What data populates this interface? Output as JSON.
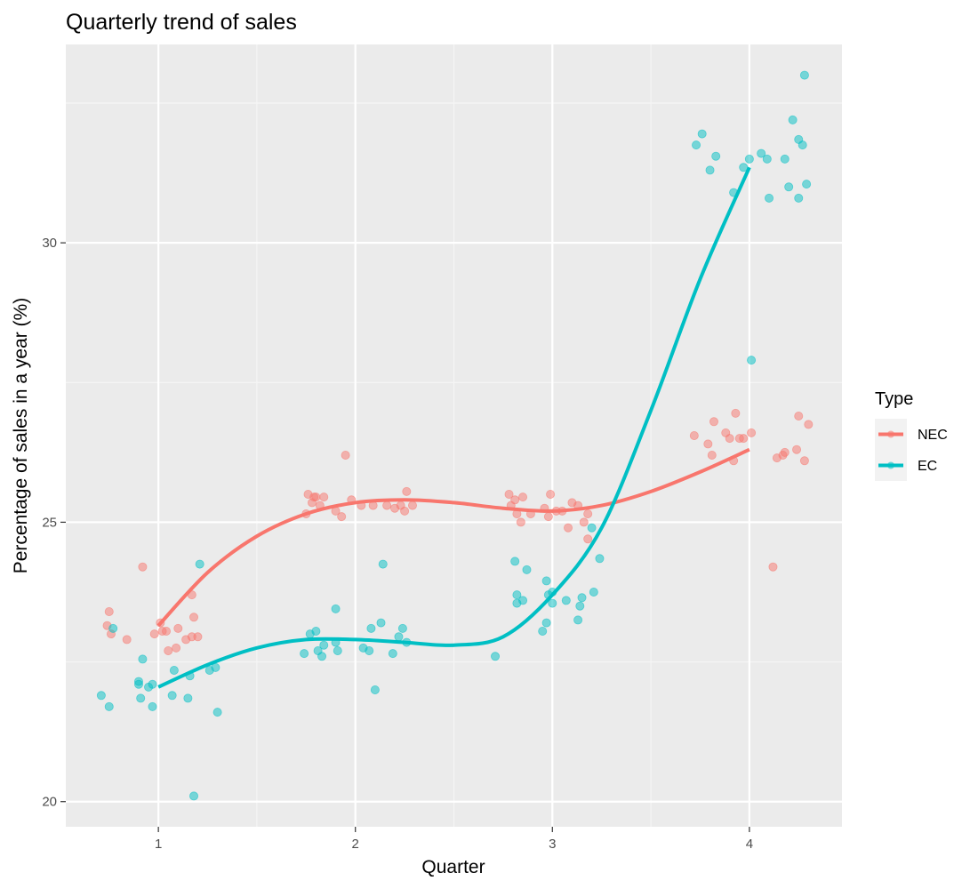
{
  "chart_data": {
    "type": "scatter",
    "title": "Quarterly trend of sales",
    "xlabel": "Quarter",
    "ylabel": "Percentage of sales in a year (%)",
    "xlim": [
      0.53,
      4.47
    ],
    "ylim": [
      19.55,
      33.55
    ],
    "x_ticks": [
      1,
      2,
      3,
      4
    ],
    "y_ticks": [
      20,
      25,
      30
    ],
    "grid": true,
    "legend": {
      "title": "Type",
      "position": "right"
    },
    "series": [
      {
        "name": "NEC",
        "color": "#F8766D",
        "points": [
          [
            0.75,
            23.4
          ],
          [
            0.74,
            23.15
          ],
          [
            0.76,
            23.0
          ],
          [
            0.84,
            22.9
          ],
          [
            0.92,
            24.2
          ],
          [
            0.98,
            23.0
          ],
          [
            1.01,
            23.2
          ],
          [
            1.02,
            23.05
          ],
          [
            1.04,
            23.05
          ],
          [
            1.05,
            22.7
          ],
          [
            1.09,
            22.75
          ],
          [
            1.1,
            23.1
          ],
          [
            1.14,
            22.9
          ],
          [
            1.17,
            23.7
          ],
          [
            1.17,
            22.95
          ],
          [
            1.18,
            23.3
          ],
          [
            1.2,
            22.95
          ],
          [
            1.75,
            25.15
          ],
          [
            1.76,
            25.5
          ],
          [
            1.78,
            25.35
          ],
          [
            1.79,
            25.45
          ],
          [
            1.8,
            25.45
          ],
          [
            1.82,
            25.3
          ],
          [
            1.84,
            25.45
          ],
          [
            1.9,
            25.2
          ],
          [
            1.93,
            25.1
          ],
          [
            1.95,
            26.2
          ],
          [
            1.98,
            25.4
          ],
          [
            2.03,
            25.3
          ],
          [
            2.09,
            25.3
          ],
          [
            2.16,
            25.3
          ],
          [
            2.2,
            25.25
          ],
          [
            2.23,
            25.3
          ],
          [
            2.25,
            25.2
          ],
          [
            2.26,
            25.55
          ],
          [
            2.29,
            25.3
          ],
          [
            2.78,
            25.5
          ],
          [
            2.79,
            25.3
          ],
          [
            2.81,
            25.4
          ],
          [
            2.82,
            25.15
          ],
          [
            2.84,
            25.0
          ],
          [
            2.85,
            25.45
          ],
          [
            2.89,
            25.15
          ],
          [
            2.96,
            25.25
          ],
          [
            2.98,
            25.1
          ],
          [
            2.99,
            25.5
          ],
          [
            3.02,
            25.2
          ],
          [
            3.05,
            25.2
          ],
          [
            3.08,
            24.9
          ],
          [
            3.1,
            25.35
          ],
          [
            3.13,
            25.3
          ],
          [
            3.16,
            25.0
          ],
          [
            3.18,
            25.15
          ],
          [
            3.18,
            24.7
          ],
          [
            3.72,
            26.55
          ],
          [
            3.79,
            26.4
          ],
          [
            3.81,
            26.2
          ],
          [
            3.82,
            26.8
          ],
          [
            3.88,
            26.6
          ],
          [
            3.9,
            26.5
          ],
          [
            3.92,
            26.1
          ],
          [
            3.93,
            26.95
          ],
          [
            3.95,
            26.5
          ],
          [
            3.97,
            26.5
          ],
          [
            4.01,
            26.6
          ],
          [
            4.12,
            24.2
          ],
          [
            4.14,
            26.15
          ],
          [
            4.17,
            26.2
          ],
          [
            4.18,
            26.25
          ],
          [
            4.24,
            26.3
          ],
          [
            4.25,
            26.9
          ],
          [
            4.28,
            26.1
          ],
          [
            4.3,
            26.75
          ]
        ],
        "trend": [
          [
            1.0,
            23.15
          ],
          [
            1.25,
            24.1
          ],
          [
            1.5,
            24.75
          ],
          [
            1.75,
            25.15
          ],
          [
            2.0,
            25.35
          ],
          [
            2.25,
            25.4
          ],
          [
            2.5,
            25.35
          ],
          [
            2.75,
            25.25
          ],
          [
            3.0,
            25.2
          ],
          [
            3.25,
            25.3
          ],
          [
            3.5,
            25.55
          ],
          [
            3.75,
            25.9
          ],
          [
            4.0,
            26.3
          ]
        ]
      },
      {
        "name": "EC",
        "color": "#00BFC4",
        "points": [
          [
            0.71,
            21.9
          ],
          [
            0.75,
            21.7
          ],
          [
            0.77,
            23.1
          ],
          [
            0.9,
            22.15
          ],
          [
            0.9,
            22.1
          ],
          [
            0.91,
            21.85
          ],
          [
            0.92,
            22.55
          ],
          [
            0.95,
            22.05
          ],
          [
            0.97,
            22.1
          ],
          [
            0.97,
            21.7
          ],
          [
            1.07,
            21.9
          ],
          [
            1.08,
            22.35
          ],
          [
            1.15,
            21.85
          ],
          [
            1.16,
            22.25
          ],
          [
            1.18,
            20.1
          ],
          [
            1.21,
            24.25
          ],
          [
            1.26,
            22.35
          ],
          [
            1.29,
            22.4
          ],
          [
            1.3,
            21.6
          ],
          [
            1.74,
            22.65
          ],
          [
            1.77,
            23.0
          ],
          [
            1.8,
            23.05
          ],
          [
            1.81,
            22.7
          ],
          [
            1.83,
            22.6
          ],
          [
            1.84,
            22.8
          ],
          [
            1.9,
            22.85
          ],
          [
            1.9,
            23.45
          ],
          [
            1.91,
            22.7
          ],
          [
            2.04,
            22.75
          ],
          [
            2.07,
            22.7
          ],
          [
            2.08,
            23.1
          ],
          [
            2.1,
            22.0
          ],
          [
            2.13,
            23.2
          ],
          [
            2.14,
            24.25
          ],
          [
            2.19,
            22.65
          ],
          [
            2.22,
            22.95
          ],
          [
            2.24,
            23.1
          ],
          [
            2.26,
            22.85
          ],
          [
            2.71,
            22.6
          ],
          [
            2.81,
            24.3
          ],
          [
            2.82,
            23.7
          ],
          [
            2.82,
            23.55
          ],
          [
            2.85,
            23.6
          ],
          [
            2.87,
            24.15
          ],
          [
            2.95,
            23.05
          ],
          [
            2.97,
            23.2
          ],
          [
            2.97,
            23.95
          ],
          [
            2.98,
            23.7
          ],
          [
            3.0,
            23.55
          ],
          [
            3.0,
            23.75
          ],
          [
            3.07,
            23.6
          ],
          [
            3.13,
            23.25
          ],
          [
            3.14,
            23.5
          ],
          [
            3.15,
            23.65
          ],
          [
            3.2,
            24.9
          ],
          [
            3.21,
            23.75
          ],
          [
            3.24,
            24.35
          ],
          [
            3.73,
            31.75
          ],
          [
            3.76,
            31.95
          ],
          [
            3.8,
            31.3
          ],
          [
            3.83,
            31.55
          ],
          [
            3.92,
            30.9
          ],
          [
            3.97,
            31.35
          ],
          [
            4.0,
            31.5
          ],
          [
            4.01,
            27.9
          ],
          [
            4.06,
            31.6
          ],
          [
            4.09,
            31.5
          ],
          [
            4.1,
            30.8
          ],
          [
            4.18,
            31.5
          ],
          [
            4.2,
            31.0
          ],
          [
            4.22,
            32.2
          ],
          [
            4.25,
            30.8
          ],
          [
            4.25,
            31.85
          ],
          [
            4.27,
            31.75
          ],
          [
            4.28,
            33.0
          ],
          [
            4.29,
            31.05
          ]
        ],
        "trend": [
          [
            1.0,
            22.05
          ],
          [
            1.25,
            22.45
          ],
          [
            1.5,
            22.75
          ],
          [
            1.75,
            22.9
          ],
          [
            2.0,
            22.9
          ],
          [
            2.25,
            22.85
          ],
          [
            2.5,
            22.8
          ],
          [
            2.75,
            22.95
          ],
          [
            3.0,
            23.7
          ],
          [
            3.25,
            24.9
          ],
          [
            3.5,
            27.0
          ],
          [
            3.75,
            29.35
          ],
          [
            4.0,
            31.35
          ]
        ]
      }
    ]
  }
}
